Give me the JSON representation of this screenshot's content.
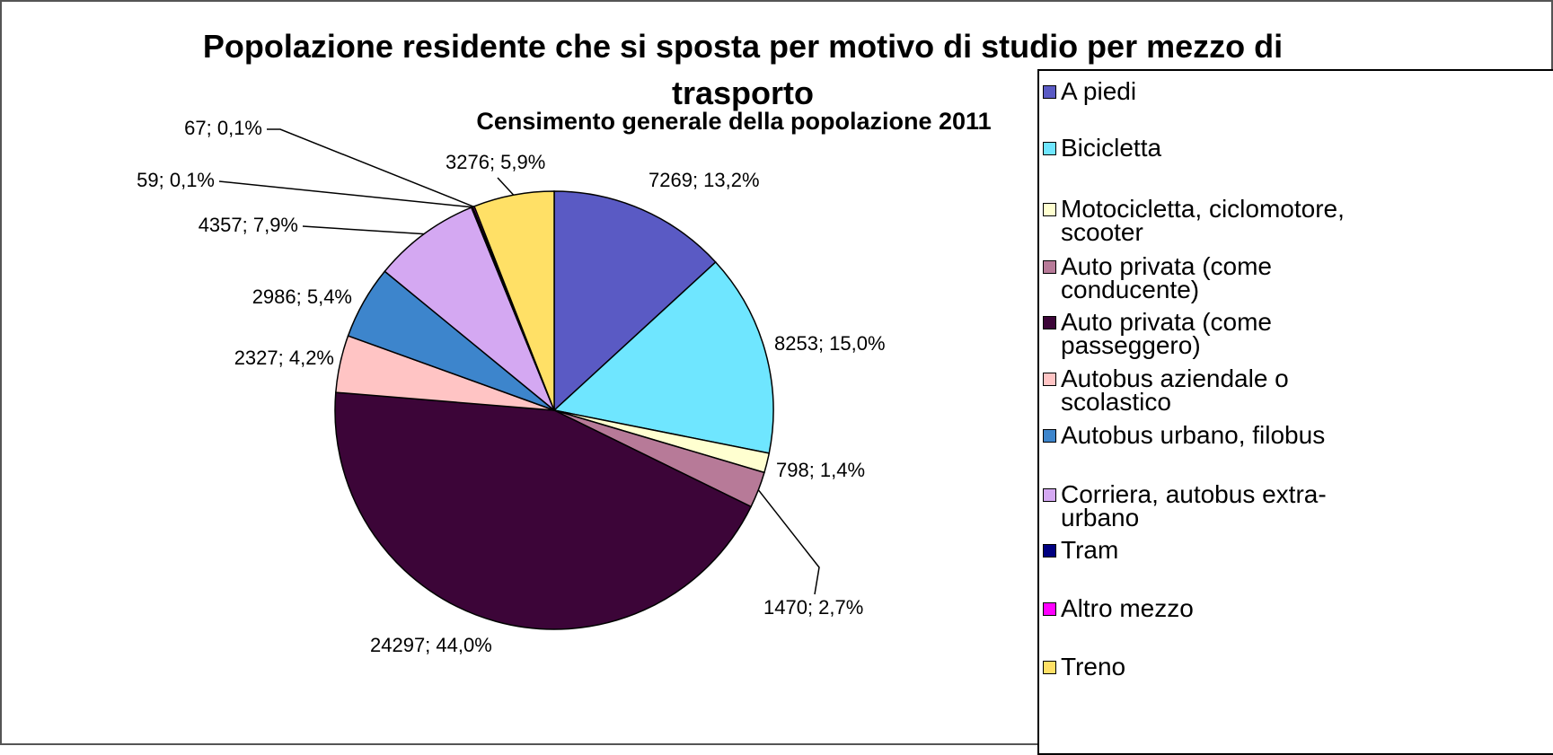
{
  "chart_data": {
    "type": "pie",
    "title": "Popolazione residente che si sposta per motivo di studio per mezzo di trasporto",
    "subtitle": "Censimento generale della popolazione 2011",
    "categories": [
      "A piedi",
      "Bicicletta",
      "Motocicletta, ciclomotore, scooter",
      "Auto privata (come conducente)",
      "Auto privata (come passeggero)",
      "Autobus aziendale o scolastico",
      "Autobus urbano, filobus",
      "Corriera, autobus extra-urbano",
      "Tram",
      "Altro mezzo",
      "Treno"
    ],
    "values": [
      7269,
      8253,
      798,
      1470,
      24297,
      2327,
      2986,
      4357,
      59,
      67,
      3276
    ],
    "value_labels": [
      "7269; 13,2%",
      "8253; 15,0%",
      "798; 1,4%",
      "1470; 2,7%",
      "24297; 44,0%",
      "2327; 4,2%",
      "2986; 5,4%",
      "4357; 7,9%",
      "59; 0,1%",
      "67; 0,1%",
      "3276; 5,9%"
    ],
    "colors": [
      "#5a5ac4",
      "#6fe6ff",
      "#ffffd0",
      "#b77a98",
      "#3c0538",
      "#ffc4c4",
      "#3d85cc",
      "#d4a8f2",
      "#000080",
      "#ff00ff",
      "#ffe066"
    ],
    "legend": "right"
  }
}
